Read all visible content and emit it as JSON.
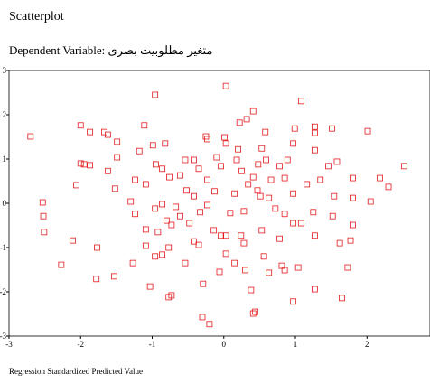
{
  "chart_data": {
    "type": "scatter",
    "title": "Scatterplot",
    "subtitle": "Dependent Variable: متغير مطلوبيت بصرى",
    "x_label": "Regression Standardized Predicted Value",
    "color": "#e31a1c",
    "xlim": [
      -3,
      2.88
    ],
    "ylim": [
      -3,
      3
    ],
    "xticks": [
      -3,
      -2,
      -1,
      0,
      1,
      2
    ],
    "yticks": [
      -3,
      -2,
      -1,
      0,
      1,
      2,
      3
    ],
    "x": [
      0.03,
      -0.96,
      1.08,
      0.41,
      -2.7,
      -2.0,
      -1.87,
      -1.67,
      -1.62,
      -1.11,
      0.22,
      0.32,
      0.58,
      0.99,
      1.27,
      1.27,
      1.51,
      2.01,
      -1.49,
      -0.23,
      -0.25,
      0.01,
      0.03,
      -0.82,
      -1.18,
      -0.99,
      1.27,
      0.2,
      0.53,
      0.97,
      -1.95,
      -1.87,
      -2.0,
      -1.49,
      -0.95,
      -0.86,
      -0.54,
      -0.42,
      -0.35,
      -0.1,
      -0.04,
      0.18,
      0.25,
      0.48,
      0.59,
      0.78,
      0.89,
      1.46,
      1.58,
      2.52,
      -1.62,
      -1.24,
      -2.06,
      -1.52,
      -0.61,
      -0.76,
      -0.23,
      0.34,
      0.41,
      0.66,
      0.85,
      1.16,
      1.35,
      1.8,
      2.18,
      2.3,
      -1.09,
      -0.52,
      -0.42,
      -0.13,
      0.15,
      0.47,
      0.51,
      0.63,
      0.97,
      1.54,
      1.8,
      2.05,
      -2.53,
      -1.3,
      -0.96,
      -0.86,
      -0.67,
      -0.61,
      -0.33,
      -0.23,
      0.09,
      0.28,
      0.72,
      0.85,
      1.25,
      1.52,
      -2.52,
      -1.24,
      -0.8,
      -0.73,
      -0.48,
      -0.14,
      -0.04,
      0.03,
      0.53,
      0.97,
      1.08,
      1.8,
      -2.51,
      -1.09,
      -0.92,
      -0.42,
      -0.35,
      0.24,
      0.28,
      0.78,
      1.27,
      1.62,
      1.77,
      -2.11,
      -1.77,
      -1.09,
      -0.77,
      0.03,
      0.56,
      -0.96,
      -0.86,
      -0.54,
      -1.27,
      -2.27,
      0.15,
      0.81,
      0.85,
      1.04,
      1.73,
      -1.78,
      -1.53,
      -0.06,
      0.3,
      0.63,
      -0.29,
      -1.03,
      0.38,
      1.27,
      -0.73,
      -0.77,
      1.65,
      0.97,
      0.44,
      0.41,
      -0.3,
      -0.2
    ],
    "values": [
      2.65,
      2.45,
      2.31,
      2.08,
      1.51,
      1.76,
      1.61,
      1.61,
      1.55,
      1.76,
      1.82,
      1.9,
      1.61,
      1.69,
      1.73,
      1.59,
      1.69,
      1.63,
      1.39,
      1.45,
      1.51,
      1.49,
      1.35,
      1.35,
      1.18,
      1.31,
      1.2,
      1.22,
      1.24,
      1.35,
      0.88,
      0.86,
      0.9,
      1.04,
      0.88,
      0.78,
      0.98,
      0.98,
      0.78,
      1.04,
      0.84,
      0.98,
      0.73,
      0.88,
      0.98,
      0.84,
      0.98,
      0.84,
      0.94,
      0.84,
      0.73,
      0.53,
      0.41,
      0.33,
      0.63,
      0.59,
      0.53,
      0.43,
      0.59,
      0.53,
      0.57,
      0.43,
      0.53,
      0.57,
      0.57,
      0.37,
      0.43,
      0.29,
      0.16,
      0.27,
      0.22,
      0.29,
      0.16,
      0.12,
      0.22,
      0.16,
      0.12,
      0.04,
      0.02,
      0.04,
      -0.12,
      -0.02,
      -0.08,
      -0.29,
      -0.2,
      -0.04,
      -0.22,
      -0.18,
      -0.12,
      -0.24,
      -0.2,
      -0.29,
      -0.29,
      -0.24,
      -0.39,
      -0.49,
      -0.45,
      -0.61,
      -0.73,
      -0.73,
      -0.61,
      -0.45,
      -0.45,
      -0.49,
      -0.65,
      -0.59,
      -0.65,
      -0.86,
      -0.94,
      -0.73,
      -0.9,
      -0.8,
      -0.73,
      -0.9,
      -0.84,
      -0.84,
      -1.0,
      -0.96,
      -1.0,
      -1.14,
      -1.2,
      -1.2,
      -1.16,
      -1.35,
      -1.35,
      -1.39,
      -1.35,
      -1.41,
      -1.51,
      -1.45,
      -1.45,
      -1.71,
      -1.65,
      -1.55,
      -1.51,
      -1.57,
      -1.82,
      -1.88,
      -1.96,
      -1.94,
      -2.08,
      -2.12,
      -2.14,
      -2.22,
      -2.45,
      -2.49,
      -2.57,
      -2.73
    ]
  }
}
